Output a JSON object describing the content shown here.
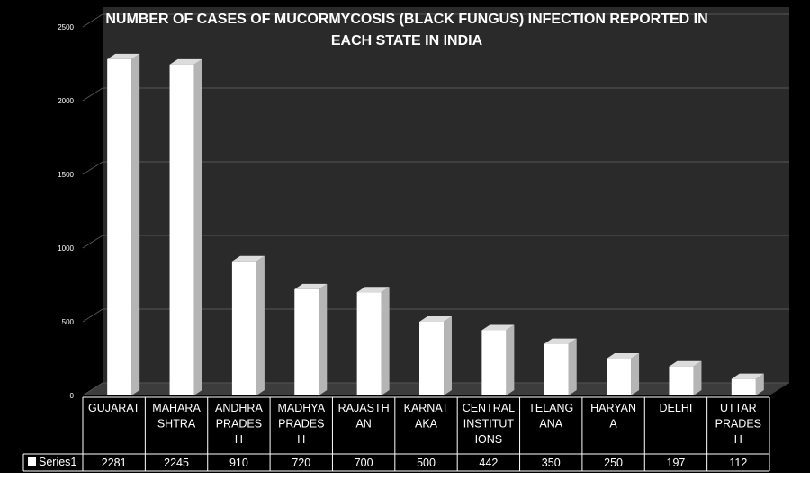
{
  "chart_data": {
    "type": "bar",
    "title_lines": [
      "NUMBER OF CASES OF MUCORMYCOSIS (BLACK FUNGUS)  INFECTION REPORTED IN",
      "EACH STATE IN INDIA"
    ],
    "categories": [
      [
        "GUJARAT"
      ],
      [
        "MAHARA",
        "SHTRA"
      ],
      [
        "ANDHRA",
        "PRADES",
        "H"
      ],
      [
        "MADHYA",
        "PRADES",
        "H"
      ],
      [
        "RAJASTH",
        "AN"
      ],
      [
        "KARNAT",
        "AKA"
      ],
      [
        "CENTRAL",
        "INSTITUT",
        "IONS"
      ],
      [
        "TELANG",
        "ANA"
      ],
      [
        "HARYAN",
        "A"
      ],
      [
        "DELHI"
      ],
      [
        "UTTAR",
        "PRADES",
        "H"
      ]
    ],
    "series": [
      {
        "name": "Series1",
        "values": [
          2281,
          2245,
          910,
          720,
          700,
          500,
          442,
          350,
          250,
          197,
          112
        ]
      }
    ],
    "y_ticks": [
      "0",
      "500",
      "1000",
      "1500",
      "2000",
      "2500"
    ],
    "ylim": [
      0,
      2500
    ],
    "grid": true,
    "legend": "data-table",
    "colors": {
      "background": "#000000",
      "wall": "#2a2a2a",
      "floor": "#3c3c3c",
      "bar_front": "#ffffff",
      "bar_side": "#b5b5b5",
      "bar_top": "#dcdcdc",
      "text": "#ffffff",
      "gridline": "#555555"
    }
  }
}
